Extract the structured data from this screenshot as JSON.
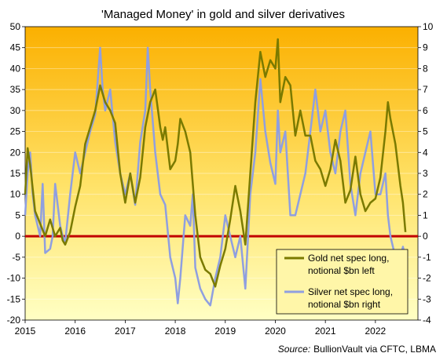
{
  "chart_data": {
    "type": "line",
    "title": "'Managed Money' in gold and silver derivatives",
    "source_label": "Source:",
    "source_text": "BullionVault via CFTC, LBMA",
    "x_ticks": [
      "2015",
      "2016",
      "2017",
      "2018",
      "2019",
      "2020",
      "2021",
      "2022"
    ],
    "x_range": [
      2015.0,
      2022.85
    ],
    "y_left": {
      "min": -20,
      "max": 50,
      "ticks": [
        -20,
        -15,
        -10,
        -5,
        0,
        5,
        10,
        15,
        20,
        25,
        30,
        35,
        40,
        45,
        50
      ]
    },
    "y_right": {
      "min": -4,
      "max": 10,
      "ticks": [
        -4,
        -3,
        -2,
        -1,
        0,
        1,
        2,
        3,
        4,
        5,
        6,
        7,
        8,
        9,
        10
      ]
    },
    "zero_line_color": "#c00000",
    "legend_position": "bottom-right",
    "series": [
      {
        "name": "Gold net spec long, notional $bn left",
        "legend_lines": [
          "Gold net spec long,",
          "notional $bn left"
        ],
        "axis": "left",
        "color": "#7a7a00",
        "x": [
          2015.0,
          2015.05,
          2015.1,
          2015.2,
          2015.3,
          2015.4,
          2015.5,
          2015.55,
          2015.6,
          2015.7,
          2015.75,
          2015.8,
          2015.9,
          2016.0,
          2016.1,
          2016.2,
          2016.3,
          2016.4,
          2016.5,
          2016.55,
          2016.6,
          2016.7,
          2016.8,
          2016.9,
          2017.0,
          2017.1,
          2017.2,
          2017.3,
          2017.4,
          2017.5,
          2017.6,
          2017.7,
          2017.75,
          2017.8,
          2017.9,
          2018.0,
          2018.05,
          2018.1,
          2018.2,
          2018.3,
          2018.4,
          2018.5,
          2018.6,
          2018.7,
          2018.8,
          2018.9,
          2019.0,
          2019.1,
          2019.2,
          2019.3,
          2019.4,
          2019.5,
          2019.6,
          2019.7,
          2019.8,
          2019.9,
          2020.0,
          2020.05,
          2020.1,
          2020.2,
          2020.3,
          2020.4,
          2020.5,
          2020.6,
          2020.7,
          2020.8,
          2020.9,
          2021.0,
          2021.1,
          2021.2,
          2021.3,
          2021.4,
          2021.5,
          2021.6,
          2021.7,
          2021.8,
          2021.9,
          2022.0,
          2022.1,
          2022.2,
          2022.25,
          2022.3,
          2022.4,
          2022.5,
          2022.55,
          2022.6
        ],
        "values": [
          10,
          21,
          17,
          6,
          3,
          0,
          4,
          2,
          0,
          2,
          -1,
          -2,
          1,
          7,
          12,
          22,
          26,
          30,
          36,
          34,
          32,
          30,
          27,
          15,
          8,
          15,
          8,
          14,
          26,
          32,
          35,
          26,
          23,
          26,
          16,
          18,
          22,
          28,
          25,
          20,
          5,
          -5,
          -8,
          -9,
          -12,
          -7,
          -3,
          4,
          12,
          6,
          -2,
          15,
          32,
          44,
          38,
          42,
          40,
          47,
          32,
          38,
          36,
          24,
          30,
          24,
          24,
          18,
          16,
          12,
          16,
          23,
          18,
          8,
          11,
          19,
          10,
          6,
          8,
          9,
          14,
          25,
          32,
          28,
          22,
          12,
          8,
          1
        ]
      },
      {
        "name": "Silver net spec long, notional $bn right",
        "legend_lines": [
          "Silver net spec long,",
          "notional $bn right"
        ],
        "axis": "right",
        "color": "#8f9fe0",
        "x": [
          2015.0,
          2015.05,
          2015.1,
          2015.15,
          2015.2,
          2015.3,
          2015.35,
          2015.4,
          2015.5,
          2015.55,
          2015.6,
          2015.7,
          2015.75,
          2015.8,
          2015.9,
          2016.0,
          2016.1,
          2016.2,
          2016.3,
          2016.4,
          2016.5,
          2016.55,
          2016.6,
          2016.7,
          2016.8,
          2016.9,
          2017.0,
          2017.1,
          2017.2,
          2017.3,
          2017.4,
          2017.45,
          2017.5,
          2017.6,
          2017.7,
          2017.8,
          2017.9,
          2018.0,
          2018.05,
          2018.1,
          2018.2,
          2018.3,
          2018.35,
          2018.4,
          2018.5,
          2018.6,
          2018.7,
          2018.8,
          2018.9,
          2019.0,
          2019.1,
          2019.2,
          2019.3,
          2019.4,
          2019.5,
          2019.6,
          2019.7,
          2019.8,
          2019.9,
          2020.0,
          2020.05,
          2020.1,
          2020.2,
          2020.3,
          2020.4,
          2020.5,
          2020.6,
          2020.7,
          2020.8,
          2020.9,
          2021.0,
          2021.1,
          2021.2,
          2021.3,
          2021.4,
          2021.5,
          2021.6,
          2021.7,
          2021.8,
          2021.9,
          2022.0,
          2022.1,
          2022.2,
          2022.25,
          2022.3,
          2022.4,
          2022.5,
          2022.55,
          2022.6
        ],
        "values": [
          1,
          3,
          4,
          2,
          1,
          0,
          2.5,
          -0.8,
          -0.6,
          0,
          2.5,
          0.5,
          0,
          -0.3,
          2,
          4,
          3,
          4,
          5,
          5.8,
          9,
          7,
          6,
          7,
          4.5,
          3,
          2,
          3,
          1.5,
          4.5,
          6,
          9,
          7,
          4,
          2,
          1.5,
          -1,
          -2,
          -3.2,
          -2,
          1,
          0.5,
          2,
          -1.5,
          -2.5,
          -3,
          -3.3,
          -2,
          -1,
          1,
          0,
          -1,
          0,
          -2.5,
          2,
          4,
          7.5,
          5,
          3.5,
          2.5,
          6,
          4,
          5,
          1,
          1,
          2,
          3,
          5,
          7,
          5,
          6,
          4,
          3,
          5,
          6,
          2.5,
          1,
          3,
          4,
          5,
          2,
          2,
          3,
          1,
          0,
          -1,
          -1,
          -0.5,
          -1
        ]
      }
    ]
  }
}
